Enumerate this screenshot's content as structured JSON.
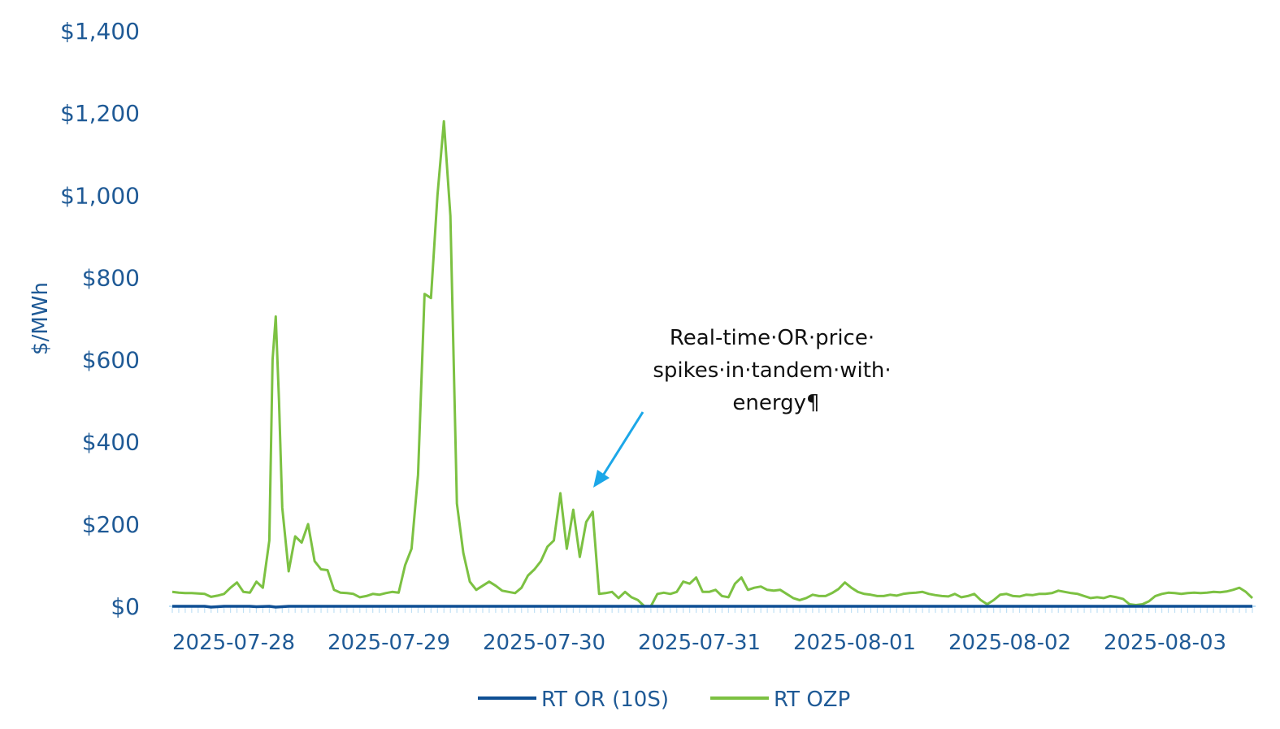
{
  "colors": {
    "axis_text": "#1f5a96",
    "series_or": "#0f4f94",
    "series_ozp": "#7cc142",
    "axis_line": "#bfe0f5",
    "arrow": "#1ca7e8"
  },
  "chart_data": {
    "type": "line",
    "ylabel": "$/MWh",
    "ylim": [
      0,
      1400
    ],
    "yticks": [
      0,
      200,
      400,
      600,
      800,
      1000,
      1200,
      1400
    ],
    "ytick_labels": [
      "$0",
      "$200",
      "$400",
      "$600",
      "$800",
      "$1,000",
      "$1,200",
      "$1,400"
    ],
    "xlim": [
      0,
      167
    ],
    "xticks": [
      0,
      24,
      48,
      72,
      96,
      120,
      144
    ],
    "xtick_labels": [
      "2025-07-28",
      "2025-07-29",
      "2025-07-30",
      "2025-07-31",
      "2025-08-01",
      "2025-08-02",
      "2025-08-03"
    ],
    "legend_position": "bottom",
    "annotation": {
      "lines": [
        "Real-time·OR·price·",
        "spikes·in·tandem·with·",
        "energy¶"
      ]
    },
    "series": [
      {
        "name": "RT OR (10S)",
        "points": [
          [
            0,
            0
          ],
          [
            3,
            0
          ],
          [
            5,
            0
          ],
          [
            6,
            -2
          ],
          [
            8,
            0
          ],
          [
            12,
            0
          ],
          [
            13,
            -1
          ],
          [
            15,
            0
          ],
          [
            16,
            -2
          ],
          [
            18,
            0
          ],
          [
            19,
            0
          ],
          [
            20,
            0
          ],
          [
            21,
            0
          ],
          [
            22,
            0
          ],
          [
            23,
            0
          ],
          [
            24,
            0
          ],
          [
            25,
            0
          ],
          [
            26,
            0
          ],
          [
            27,
            0
          ],
          [
            28,
            0
          ],
          [
            29,
            0
          ],
          [
            30,
            0
          ],
          [
            31,
            0
          ],
          [
            32,
            0
          ],
          [
            33,
            0
          ],
          [
            34,
            0
          ],
          [
            35,
            0
          ],
          [
            36,
            0
          ],
          [
            37,
            0
          ],
          [
            38,
            0
          ],
          [
            39,
            0
          ],
          [
            40,
            0
          ],
          [
            41,
            0
          ],
          [
            42,
            0
          ],
          [
            43,
            0
          ],
          [
            44,
            0
          ],
          [
            45,
            0
          ],
          [
            46,
            0
          ],
          [
            47,
            0
          ],
          [
            48,
            0
          ],
          [
            49,
            0
          ],
          [
            50,
            0
          ],
          [
            51,
            0
          ],
          [
            52,
            0
          ],
          [
            53,
            0
          ],
          [
            54,
            0
          ],
          [
            55,
            0
          ],
          [
            56,
            0
          ],
          [
            57,
            0
          ],
          [
            58,
            0
          ],
          [
            59,
            0
          ],
          [
            60,
            0
          ],
          [
            61,
            0
          ],
          [
            62,
            0
          ],
          [
            63,
            0
          ],
          [
            64,
            0
          ],
          [
            65,
            0
          ],
          [
            66,
            0
          ],
          [
            67,
            0
          ],
          [
            68,
            0
          ],
          [
            69,
            0
          ],
          [
            70,
            0
          ],
          [
            71,
            0
          ],
          [
            72,
            0
          ],
          [
            73,
            0
          ],
          [
            74,
            0
          ],
          [
            75,
            0
          ],
          [
            76,
            0
          ],
          [
            77,
            0
          ],
          [
            78,
            0
          ],
          [
            79,
            0
          ],
          [
            80,
            0
          ],
          [
            81,
            0
          ],
          [
            82,
            0
          ],
          [
            83,
            0
          ],
          [
            84,
            0
          ],
          [
            85,
            0
          ],
          [
            86,
            0
          ],
          [
            87,
            0
          ],
          [
            88,
            0
          ],
          [
            89,
            0
          ],
          [
            90,
            0
          ],
          [
            91,
            0
          ],
          [
            92,
            0
          ],
          [
            93,
            0
          ],
          [
            94,
            0
          ],
          [
            95,
            0
          ],
          [
            96,
            0
          ],
          [
            97,
            0
          ],
          [
            98,
            0
          ],
          [
            99,
            0
          ],
          [
            100,
            0
          ],
          [
            101,
            0
          ],
          [
            102,
            0
          ],
          [
            103,
            0
          ],
          [
            104,
            0
          ],
          [
            105,
            0
          ],
          [
            106,
            0
          ],
          [
            107,
            0
          ],
          [
            108,
            0
          ],
          [
            109,
            0
          ],
          [
            110,
            0
          ],
          [
            111,
            0
          ],
          [
            112,
            0
          ],
          [
            113,
            0
          ],
          [
            114,
            0
          ],
          [
            115,
            0
          ],
          [
            116,
            0
          ],
          [
            117,
            0
          ],
          [
            118,
            0
          ],
          [
            119,
            0
          ],
          [
            120,
            0
          ],
          [
            121,
            0
          ],
          [
            122,
            0
          ],
          [
            123,
            0
          ],
          [
            124,
            0
          ],
          [
            125,
            0
          ],
          [
            126,
            0
          ],
          [
            127,
            0
          ],
          [
            128,
            0
          ],
          [
            129,
            0
          ],
          [
            130,
            0
          ],
          [
            131,
            0
          ],
          [
            132,
            0
          ],
          [
            133,
            0
          ],
          [
            134,
            0
          ],
          [
            135,
            0
          ],
          [
            136,
            0
          ],
          [
            137,
            0
          ],
          [
            138,
            0
          ],
          [
            139,
            0
          ],
          [
            140,
            0
          ],
          [
            141,
            0
          ],
          [
            142,
            0
          ],
          [
            143,
            0
          ],
          [
            144,
            0
          ],
          [
            145,
            0
          ],
          [
            146,
            0
          ],
          [
            147,
            0
          ],
          [
            148,
            0
          ],
          [
            149,
            0
          ],
          [
            150,
            0
          ],
          [
            151,
            0
          ],
          [
            152,
            0
          ],
          [
            153,
            0
          ],
          [
            154,
            0
          ],
          [
            155,
            0
          ],
          [
            156,
            0
          ],
          [
            157,
            0
          ],
          [
            158,
            0
          ],
          [
            159,
            0
          ],
          [
            160,
            0
          ],
          [
            161,
            0
          ],
          [
            162,
            0
          ],
          [
            163,
            0
          ],
          [
            164,
            0
          ],
          [
            165,
            0
          ],
          [
            166,
            0
          ],
          [
            167,
            0
          ]
        ]
      },
      {
        "name": "RT OZP",
        "points": [
          [
            0,
            35
          ],
          [
            1,
            33
          ],
          [
            2,
            32
          ],
          [
            3,
            32
          ],
          [
            4,
            31
          ],
          [
            5,
            30
          ],
          [
            6,
            23
          ],
          [
            7,
            26
          ],
          [
            8,
            30
          ],
          [
            9,
            45
          ],
          [
            10,
            58
          ],
          [
            11,
            35
          ],
          [
            12,
            33
          ],
          [
            13,
            60
          ],
          [
            14,
            45
          ],
          [
            15,
            160
          ],
          [
            15.5,
            600
          ],
          [
            16,
            705
          ],
          [
            16.5,
            500
          ],
          [
            17,
            240
          ],
          [
            18,
            85
          ],
          [
            19,
            170
          ],
          [
            20,
            155
          ],
          [
            21,
            200
          ],
          [
            22,
            110
          ],
          [
            23,
            90
          ],
          [
            24,
            88
          ],
          [
            25,
            40
          ],
          [
            26,
            33
          ],
          [
            27,
            32
          ],
          [
            28,
            30
          ],
          [
            29,
            22
          ],
          [
            30,
            25
          ],
          [
            31,
            30
          ],
          [
            32,
            28
          ],
          [
            33,
            32
          ],
          [
            34,
            35
          ],
          [
            35,
            33
          ],
          [
            36,
            100
          ],
          [
            37,
            140
          ],
          [
            38,
            320
          ],
          [
            39,
            760
          ],
          [
            40,
            750
          ],
          [
            41,
            1000
          ],
          [
            42,
            1180
          ],
          [
            43,
            950
          ],
          [
            44,
            250
          ],
          [
            45,
            130
          ],
          [
            46,
            60
          ],
          [
            47,
            40
          ],
          [
            48,
            50
          ],
          [
            49,
            60
          ],
          [
            50,
            50
          ],
          [
            51,
            38
          ],
          [
            52,
            35
          ],
          [
            53,
            32
          ],
          [
            54,
            45
          ],
          [
            55,
            75
          ],
          [
            56,
            90
          ],
          [
            57,
            110
          ],
          [
            58,
            145
          ],
          [
            59,
            160
          ],
          [
            60,
            275
          ],
          [
            61,
            140
          ],
          [
            62,
            235
          ],
          [
            63,
            120
          ],
          [
            64,
            205
          ],
          [
            65,
            230
          ],
          [
            66,
            30
          ],
          [
            67,
            32
          ],
          [
            68,
            35
          ],
          [
            69,
            20
          ],
          [
            70,
            35
          ],
          [
            71,
            22
          ],
          [
            72,
            15
          ],
          [
            73,
            0
          ],
          [
            74,
            0
          ],
          [
            75,
            30
          ],
          [
            76,
            33
          ],
          [
            77,
            30
          ],
          [
            78,
            35
          ],
          [
            79,
            60
          ],
          [
            80,
            55
          ],
          [
            81,
            70
          ],
          [
            82,
            35
          ],
          [
            83,
            35
          ],
          [
            84,
            40
          ],
          [
            85,
            25
          ],
          [
            86,
            22
          ],
          [
            87,
            55
          ],
          [
            88,
            70
          ],
          [
            89,
            40
          ],
          [
            90,
            45
          ],
          [
            91,
            48
          ],
          [
            92,
            40
          ],
          [
            93,
            38
          ],
          [
            94,
            40
          ],
          [
            95,
            30
          ],
          [
            96,
            20
          ],
          [
            97,
            15
          ],
          [
            98,
            20
          ],
          [
            99,
            28
          ],
          [
            100,
            25
          ],
          [
            101,
            25
          ],
          [
            102,
            32
          ],
          [
            103,
            42
          ],
          [
            104,
            58
          ],
          [
            105,
            45
          ],
          [
            106,
            35
          ],
          [
            107,
            30
          ],
          [
            108,
            28
          ],
          [
            109,
            25
          ],
          [
            110,
            25
          ],
          [
            111,
            28
          ],
          [
            112,
            26
          ],
          [
            113,
            30
          ],
          [
            114,
            32
          ],
          [
            115,
            33
          ],
          [
            116,
            35
          ],
          [
            117,
            30
          ],
          [
            118,
            27
          ],
          [
            119,
            25
          ],
          [
            120,
            24
          ],
          [
            121,
            30
          ],
          [
            122,
            22
          ],
          [
            123,
            25
          ],
          [
            124,
            30
          ],
          [
            125,
            15
          ],
          [
            126,
            5
          ],
          [
            127,
            15
          ],
          [
            128,
            28
          ],
          [
            129,
            30
          ],
          [
            130,
            25
          ],
          [
            131,
            24
          ],
          [
            132,
            28
          ],
          [
            133,
            27
          ],
          [
            134,
            30
          ],
          [
            135,
            30
          ],
          [
            136,
            32
          ],
          [
            137,
            38
          ],
          [
            138,
            35
          ],
          [
            139,
            32
          ],
          [
            140,
            30
          ],
          [
            141,
            25
          ],
          [
            142,
            20
          ],
          [
            143,
            22
          ],
          [
            144,
            20
          ],
          [
            145,
            25
          ],
          [
            146,
            22
          ],
          [
            147,
            18
          ],
          [
            148,
            5
          ],
          [
            149,
            3
          ],
          [
            150,
            5
          ],
          [
            151,
            12
          ],
          [
            152,
            25
          ],
          [
            153,
            30
          ],
          [
            154,
            33
          ],
          [
            155,
            32
          ],
          [
            156,
            30
          ],
          [
            157,
            32
          ],
          [
            158,
            33
          ],
          [
            159,
            32
          ],
          [
            160,
            33
          ],
          [
            161,
            35
          ],
          [
            162,
            34
          ],
          [
            163,
            36
          ],
          [
            164,
            40
          ],
          [
            165,
            45
          ],
          [
            166,
            35
          ],
          [
            167,
            20
          ]
        ]
      }
    ]
  }
}
